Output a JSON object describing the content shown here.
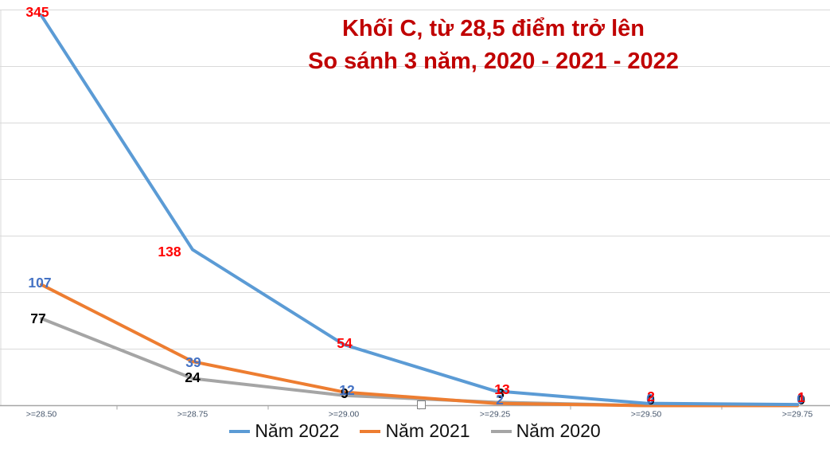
{
  "chart_data": {
    "type": "line",
    "title": "Khối C, từ 28,5 điểm trở lên",
    "subtitle": "So sánh 3 năm, 2020 - 2021 - 2022",
    "title_color": "#C00000",
    "categories": [
      ">=28.50",
      ">=28.75",
      ">=29.00",
      ">=29.25",
      ">=29.50",
      ">=29.75"
    ],
    "series": [
      {
        "name": "Năm 2022",
        "color": "#5B9BD5",
        "label_color": "#FF0000",
        "values": [
          345,
          138,
          54,
          13,
          2,
          1
        ]
      },
      {
        "name": "Năm 2021",
        "color": "#ED7D31",
        "label_color": "#4472C4",
        "values": [
          107,
          39,
          12,
          2,
          0,
          0
        ]
      },
      {
        "name": "Năm 2020",
        "color": "#A5A5A5",
        "label_color": "#000000",
        "values": [
          77,
          24,
          9,
          3,
          0,
          0
        ]
      }
    ],
    "ylim": [
      0,
      350
    ],
    "gridlines": true,
    "gridline_step": 50,
    "legend_position": "bottom",
    "gridline_color": "#D9D9D9",
    "axis_line_color": "#A6A6A6",
    "axis_label_color": "#44546A"
  }
}
